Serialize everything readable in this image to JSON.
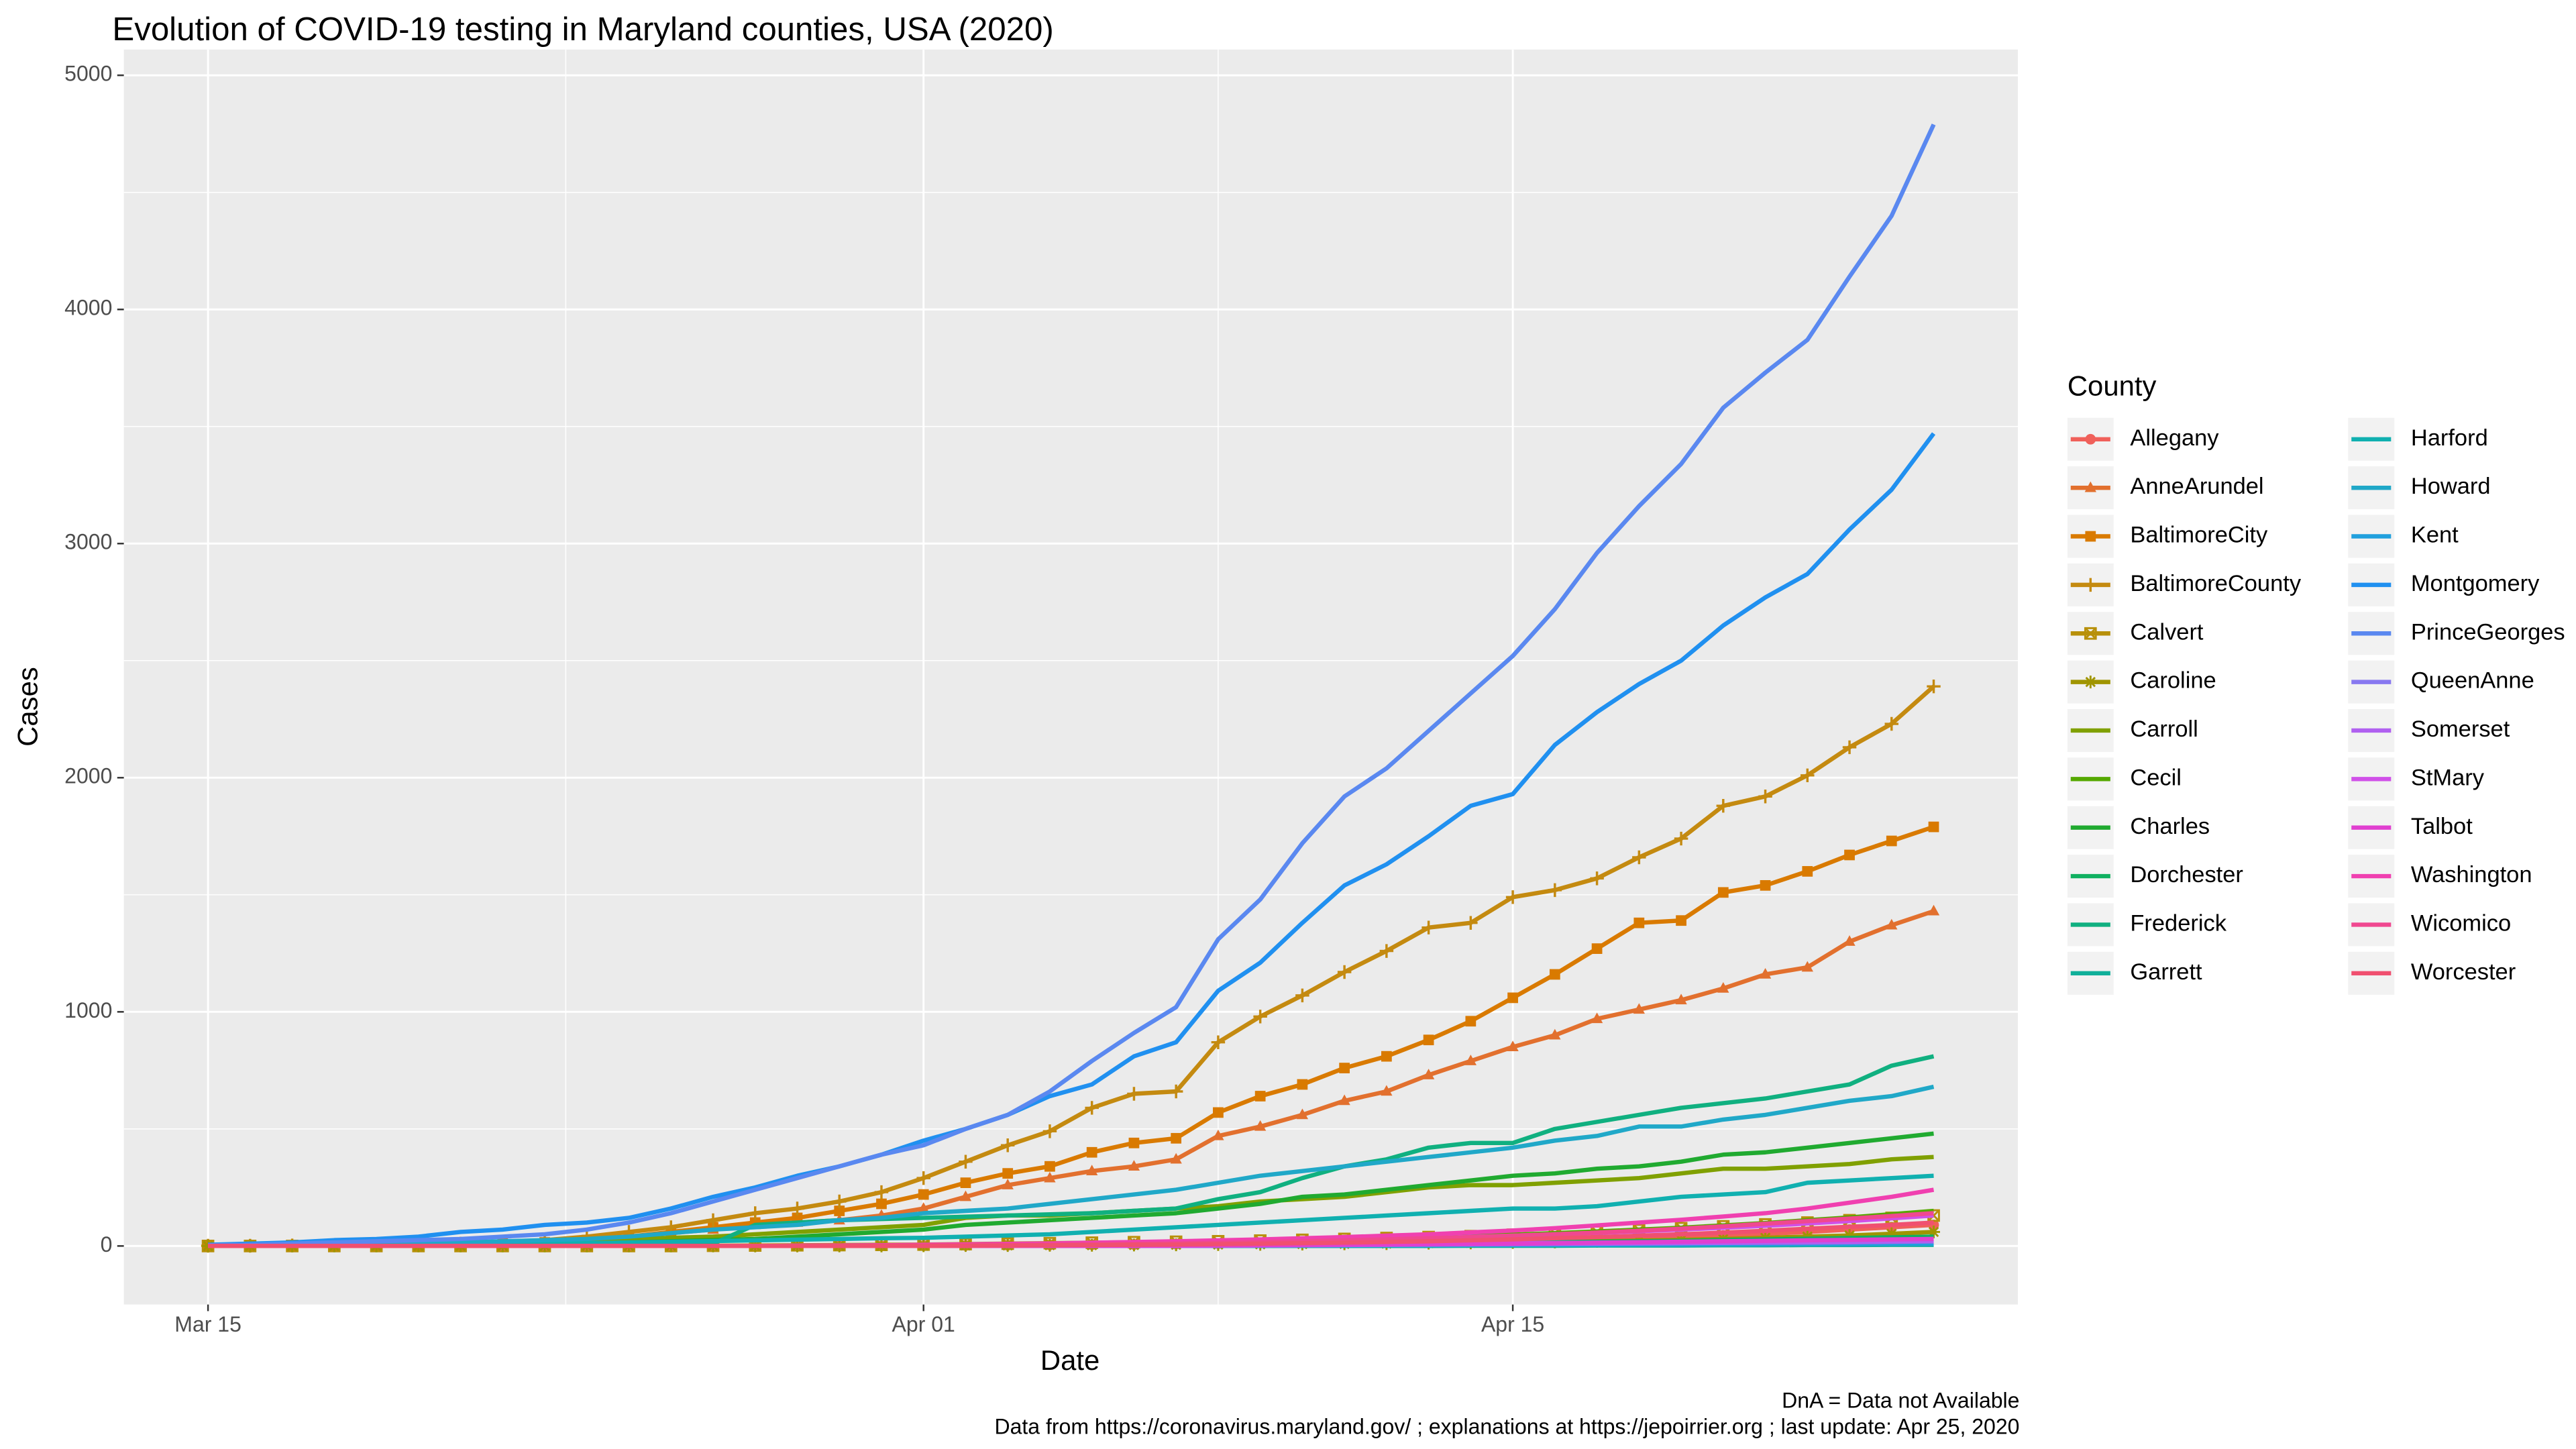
{
  "chart_data": {
    "type": "line",
    "title": "Evolution of COVID-19 testing in Maryland counties, USA (2020)",
    "x_label": "Date",
    "y_label": "Cases",
    "legend_title": "County",
    "legend": "right",
    "grid": true,
    "captions": [
      "DnA = Data not Available",
      "Data from https://coronavirus.maryland.gov/ ; explanations at https://jepoirrier.org ; last update: Apr 25, 2020"
    ],
    "x": [
      "Mar 15",
      "Mar 16",
      "Mar 17",
      "Mar 18",
      "Mar 19",
      "Mar 20",
      "Mar 21",
      "Mar 22",
      "Mar 23",
      "Mar 24",
      "Mar 25",
      "Mar 26",
      "Mar 27",
      "Mar 28",
      "Mar 29",
      "Mar 30",
      "Mar 31",
      "Apr 01",
      "Apr 02",
      "Apr 03",
      "Apr 04",
      "Apr 05",
      "Apr 06",
      "Apr 07",
      "Apr 08",
      "Apr 09",
      "Apr 10",
      "Apr 11",
      "Apr 12",
      "Apr 13",
      "Apr 14",
      "Apr 15",
      "Apr 16",
      "Apr 17",
      "Apr 18",
      "Apr 19",
      "Apr 20",
      "Apr 21",
      "Apr 22",
      "Apr 23",
      "Apr 24",
      "Apr 25"
    ],
    "xlim": [
      "Mar 13",
      "Apr 27"
    ],
    "xticks": [
      "Mar 15",
      "Apr 01",
      "Apr 15"
    ],
    "ylim": [
      -250,
      5110
    ],
    "yticks": [
      0,
      1000,
      2000,
      3000,
      4000,
      5000
    ],
    "series": [
      {
        "name": "Allegany",
        "color": "#F0605A",
        "marker": "circle",
        "values": [
          0,
          0,
          0,
          0,
          0,
          0,
          0,
          0,
          0,
          0,
          0,
          0,
          0,
          0,
          0,
          0,
          0,
          1,
          2,
          3,
          4,
          5,
          6,
          8,
          10,
          12,
          14,
          16,
          18,
          20,
          22,
          25,
          28,
          32,
          36,
          40,
          45,
          52,
          60,
          70,
          80,
          90
        ]
      },
      {
        "name": "AnneArundel",
        "color": "#E2702E",
        "marker": "triangle",
        "values": [
          0,
          0,
          1,
          2,
          3,
          4,
          6,
          10,
          20,
          30,
          40,
          55,
          70,
          90,
          100,
          110,
          130,
          160,
          210,
          260,
          290,
          320,
          340,
          370,
          470,
          510,
          560,
          620,
          660,
          730,
          790,
          850,
          900,
          970,
          1010,
          1050,
          1100,
          1160,
          1190,
          1300,
          1370,
          1430
        ]
      },
      {
        "name": "BaltimoreCity",
        "color": "#D97A00",
        "marker": "square",
        "values": [
          0,
          0,
          1,
          1,
          2,
          3,
          5,
          10,
          15,
          25,
          40,
          60,
          80,
          100,
          120,
          150,
          180,
          220,
          270,
          310,
          340,
          400,
          440,
          460,
          570,
          640,
          690,
          760,
          810,
          880,
          960,
          1060,
          1160,
          1270,
          1380,
          1390,
          1510,
          1540,
          1600,
          1670,
          1730,
          1790
        ]
      },
      {
        "name": "BaltimoreCounty",
        "color": "#C48A10",
        "marker": "plus",
        "values": [
          1,
          1,
          2,
          3,
          5,
          8,
          10,
          15,
          25,
          40,
          60,
          80,
          110,
          140,
          160,
          190,
          230,
          290,
          360,
          430,
          490,
          590,
          650,
          660,
          870,
          980,
          1070,
          1170,
          1260,
          1360,
          1380,
          1490,
          1520,
          1570,
          1660,
          1740,
          1880,
          1920,
          2010,
          2130,
          2230,
          2390
        ]
      },
      {
        "name": "Calvert",
        "color": "#B8900A",
        "marker": "square-cross",
        "values": [
          0,
          0,
          0,
          0,
          0,
          0,
          0,
          0,
          0,
          0,
          0,
          0,
          1,
          2,
          3,
          4,
          5,
          6,
          8,
          10,
          12,
          14,
          16,
          18,
          20,
          23,
          26,
          30,
          34,
          38,
          42,
          48,
          54,
          60,
          68,
          76,
          84,
          92,
          100,
          110,
          120,
          130
        ]
      },
      {
        "name": "Caroline",
        "color": "#A09500",
        "marker": "asterisk",
        "values": [
          0,
          0,
          0,
          0,
          0,
          0,
          0,
          0,
          0,
          0,
          0,
          0,
          0,
          0,
          0,
          0,
          0,
          1,
          2,
          2,
          3,
          3,
          4,
          5,
          6,
          7,
          8,
          9,
          10,
          12,
          13,
          15,
          17,
          20,
          23,
          26,
          30,
          35,
          40,
          45,
          52,
          60
        ]
      },
      {
        "name": "Carroll",
        "color": "#80A000",
        "values": [
          0,
          0,
          0,
          1,
          2,
          4,
          6,
          10,
          15,
          20,
          28,
          35,
          40,
          50,
          60,
          70,
          80,
          90,
          120,
          130,
          130,
          140,
          150,
          160,
          170,
          190,
          200,
          210,
          230,
          250,
          260,
          260,
          270,
          280,
          290,
          310,
          330,
          330,
          340,
          350,
          370,
          380
        ]
      },
      {
        "name": "Cecil",
        "color": "#55A800",
        "values": [
          0,
          0,
          0,
          0,
          0,
          0,
          0,
          0,
          0,
          0,
          0,
          0,
          0,
          0,
          1,
          2,
          3,
          4,
          5,
          6,
          8,
          10,
          12,
          14,
          17,
          20,
          24,
          28,
          32,
          37,
          42,
          48,
          55,
          62,
          70,
          78,
          88,
          98,
          110,
          122,
          136,
          150
        ]
      },
      {
        "name": "Charles",
        "color": "#20AA30",
        "values": [
          0,
          0,
          0,
          0,
          0,
          1,
          2,
          3,
          5,
          10,
          15,
          20,
          25,
          30,
          40,
          50,
          60,
          70,
          90,
          100,
          110,
          120,
          130,
          140,
          160,
          180,
          210,
          220,
          240,
          260,
          280,
          300,
          310,
          330,
          340,
          360,
          390,
          400,
          420,
          440,
          460,
          480
        ]
      },
      {
        "name": "Dorchester",
        "color": "#10B060",
        "values": [
          0,
          0,
          0,
          0,
          0,
          0,
          0,
          0,
          0,
          0,
          0,
          0,
          0,
          0,
          0,
          0,
          0,
          0,
          1,
          1,
          2,
          2,
          3,
          4,
          5,
          6,
          7,
          8,
          9,
          10,
          12,
          14,
          16,
          18,
          20,
          22,
          25,
          28,
          31,
          34,
          37,
          40
        ]
      },
      {
        "name": "Frederick",
        "color": "#10B080",
        "values": [
          0,
          0,
          0,
          0,
          0,
          0,
          0,
          1,
          2,
          3,
          5,
          8,
          10,
          90,
          100,
          110,
          115,
          120,
          125,
          130,
          135,
          140,
          150,
          160,
          200,
          230,
          290,
          340,
          370,
          420,
          440,
          440,
          500,
          530,
          560,
          590,
          610,
          630,
          660,
          690,
          770,
          810
        ]
      },
      {
        "name": "Garrett",
        "color": "#10B09A",
        "values": [
          0,
          0,
          0,
          0,
          0,
          0,
          0,
          0,
          0,
          0,
          0,
          0,
          0,
          0,
          0,
          0,
          0,
          0,
          0,
          0,
          0,
          0,
          0,
          0,
          0,
          0,
          0,
          0,
          0,
          0,
          1,
          1,
          1,
          2,
          2,
          2,
          3,
          3,
          4,
          4,
          5,
          5
        ]
      },
      {
        "name": "Harford",
        "color": "#10B0B0",
        "values": [
          0,
          0,
          0,
          1,
          2,
          3,
          5,
          7,
          9,
          12,
          15,
          18,
          21,
          24,
          27,
          30,
          33,
          35,
          40,
          45,
          50,
          60,
          70,
          80,
          90,
          100,
          110,
          120,
          130,
          140,
          150,
          160,
          160,
          170,
          190,
          210,
          220,
          230,
          270,
          280,
          290,
          300
        ]
      },
      {
        "name": "Howard",
        "color": "#20A8C8",
        "values": [
          1,
          2,
          3,
          5,
          8,
          10,
          15,
          20,
          25,
          30,
          40,
          55,
          70,
          80,
          90,
          110,
          120,
          140,
          150,
          160,
          180,
          200,
          220,
          240,
          270,
          300,
          320,
          340,
          360,
          380,
          400,
          420,
          450,
          470,
          510,
          510,
          540,
          560,
          590,
          620,
          640,
          680
        ]
      },
      {
        "name": "Kent",
        "color": "#20A0DD",
        "values": [
          0,
          0,
          0,
          0,
          0,
          0,
          0,
          0,
          0,
          0,
          0,
          0,
          0,
          0,
          0,
          0,
          0,
          0,
          0,
          0,
          0,
          0,
          0,
          0,
          1,
          1,
          2,
          2,
          3,
          3,
          4,
          4,
          5,
          5,
          6,
          6,
          7,
          7,
          8,
          8,
          9,
          10
        ]
      },
      {
        "name": "Montgomery",
        "color": "#2090F0",
        "values": [
          5,
          10,
          15,
          25,
          30,
          40,
          60,
          70,
          90,
          100,
          120,
          160,
          210,
          250,
          300,
          340,
          390,
          450,
          500,
          560,
          640,
          690,
          810,
          870,
          1090,
          1210,
          1380,
          1540,
          1630,
          1750,
          1880,
          1930,
          2140,
          2280,
          2400,
          2500,
          2650,
          2770,
          2870,
          3060,
          3230,
          3470
        ]
      },
      {
        "name": "PrinceGeorges",
        "color": "#5A88F0",
        "values": [
          3,
          5,
          10,
          15,
          20,
          25,
          30,
          40,
          50,
          70,
          100,
          140,
          190,
          240,
          290,
          340,
          390,
          430,
          500,
          560,
          660,
          790,
          910,
          1020,
          1310,
          1480,
          1720,
          1920,
          2040,
          2200,
          2360,
          2520,
          2720,
          2960,
          3160,
          3340,
          3580,
          3730,
          3870,
          4140,
          4400,
          4790
        ]
      },
      {
        "name": "QueenAnne",
        "color": "#8878F0",
        "values": [
          0,
          0,
          0,
          0,
          0,
          0,
          0,
          0,
          0,
          0,
          0,
          0,
          0,
          0,
          0,
          0,
          0,
          0,
          0,
          0,
          1,
          2,
          3,
          4,
          5,
          6,
          7,
          8,
          9,
          10,
          11,
          12,
          13,
          14,
          15,
          17,
          19,
          21,
          23,
          25,
          27,
          30
        ]
      },
      {
        "name": "Somerset",
        "color": "#B060F0",
        "values": [
          0,
          0,
          0,
          0,
          0,
          0,
          0,
          0,
          0,
          0,
          0,
          0,
          0,
          0,
          0,
          0,
          0,
          0,
          0,
          0,
          0,
          0,
          0,
          0,
          1,
          2,
          3,
          4,
          5,
          6,
          7,
          8,
          9,
          10,
          11,
          12,
          13,
          14,
          15,
          16,
          18,
          20
        ]
      },
      {
        "name": "StMary",
        "color": "#D050E8",
        "values": [
          0,
          0,
          0,
          0,
          0,
          0,
          0,
          0,
          0,
          0,
          0,
          0,
          0,
          0,
          1,
          2,
          3,
          4,
          5,
          6,
          8,
          10,
          12,
          14,
          16,
          19,
          22,
          26,
          30,
          34,
          39,
          44,
          50,
          56,
          63,
          70,
          78,
          86,
          96,
          106,
          118,
          130
        ]
      },
      {
        "name": "Talbot",
        "color": "#E040D0",
        "values": [
          0,
          0,
          0,
          0,
          0,
          0,
          0,
          0,
          0,
          0,
          0,
          0,
          0,
          0,
          0,
          0,
          0,
          0,
          0,
          0,
          0,
          0,
          1,
          2,
          3,
          4,
          5,
          6,
          7,
          8,
          9,
          10,
          12,
          14,
          16,
          18,
          20,
          22,
          24,
          26,
          28,
          30
        ]
      },
      {
        "name": "Washington",
        "color": "#F040B0",
        "values": [
          0,
          0,
          0,
          0,
          0,
          0,
          0,
          0,
          0,
          0,
          0,
          0,
          0,
          0,
          1,
          2,
          3,
          5,
          7,
          9,
          11,
          14,
          17,
          20,
          24,
          28,
          33,
          38,
          44,
          50,
          58,
          66,
          76,
          88,
          100,
          112,
          126,
          140,
          160,
          185,
          210,
          240
        ]
      },
      {
        "name": "Wicomico",
        "color": "#F04890",
        "values": [
          0,
          0,
          0,
          0,
          0,
          0,
          0,
          0,
          0,
          0,
          0,
          0,
          0,
          0,
          0,
          0,
          1,
          2,
          3,
          4,
          5,
          7,
          9,
          11,
          14,
          17,
          20,
          24,
          28,
          33,
          38,
          44,
          50,
          57,
          65,
          74,
          84,
          95,
          106,
          117,
          128,
          140
        ]
      },
      {
        "name": "Worcester",
        "color": "#F05070",
        "values": [
          0,
          0,
          0,
          0,
          0,
          0,
          0,
          0,
          0,
          0,
          0,
          0,
          0,
          0,
          0,
          0,
          0,
          0,
          1,
          2,
          3,
          4,
          5,
          6,
          8,
          10,
          12,
          14,
          17,
          20,
          24,
          28,
          33,
          38,
          44,
          50,
          57,
          65,
          74,
          82,
          90,
          100
        ]
      }
    ]
  }
}
